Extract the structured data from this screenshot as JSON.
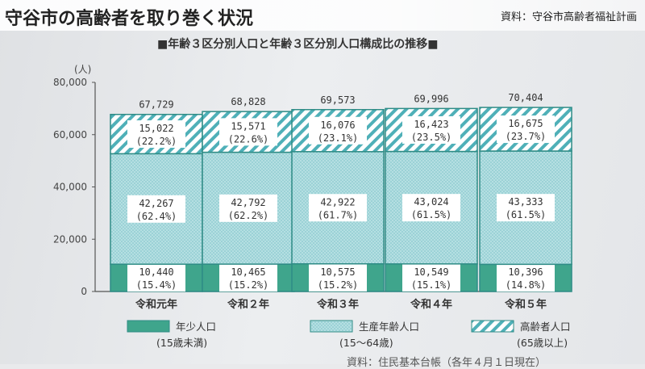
{
  "header": {
    "title": "守谷市の高齢者を取り巻く状況",
    "source": "資料：守谷市高齢者福祉計画"
  },
  "footnote": "資料：住民基本台帳（各年４月１日現在）",
  "colors": {
    "young": "#3fa58c",
    "working": "#a9d8dc",
    "working_dots": "#6fb9bf",
    "elderly_stripe": "#4fb0b8",
    "bar_border": "#2f8c86"
  },
  "chart_data": {
    "type": "bar",
    "stacked": true,
    "title": "■年齢３区分別人口と年齢３区分別人口構成比の推移■",
    "y_unit": "(人)",
    "ylim": [
      0,
      80000
    ],
    "y_ticks": [
      "0",
      "20,000",
      "40,000",
      "60,000",
      "80,000"
    ],
    "categories": [
      "令和元年",
      "令和２年",
      "令和３年",
      "令和４年",
      "令和５年"
    ],
    "totals": [
      67729,
      68828,
      69573,
      69996,
      70404
    ],
    "total_labels": [
      "67,729",
      "68,828",
      "69,573",
      "69,996",
      "70,404"
    ],
    "series": [
      {
        "name": "年少人口",
        "sub": "(15歳未満)",
        "values": [
          10440,
          10465,
          10575,
          10549,
          10396
        ],
        "labels": [
          "10,440",
          "10,465",
          "10,575",
          "10,549",
          "10,396"
        ],
        "shares": [
          "(15.4%)",
          "(15.2%)",
          "(15.2%)",
          "(15.1%)",
          "(14.8%)"
        ]
      },
      {
        "name": "生産年齢人口",
        "sub": "(15～64歳)",
        "values": [
          42267,
          42792,
          42922,
          43024,
          43333
        ],
        "labels": [
          "42,267",
          "42,792",
          "42,922",
          "43,024",
          "43,333"
        ],
        "shares": [
          "(62.4%)",
          "(62.2%)",
          "(61.7%)",
          "(61.5%)",
          "(61.5%)"
        ]
      },
      {
        "name": "高齢者人口",
        "sub": "(65歳以上)",
        "values": [
          15022,
          15571,
          16076,
          16423,
          16675
        ],
        "labels": [
          "15,022",
          "15,571",
          "16,076",
          "16,423",
          "16,675"
        ],
        "shares": [
          "(22.2%)",
          "(22.6%)",
          "(23.1%)",
          "(23.5%)",
          "(23.7%)"
        ]
      }
    ]
  }
}
